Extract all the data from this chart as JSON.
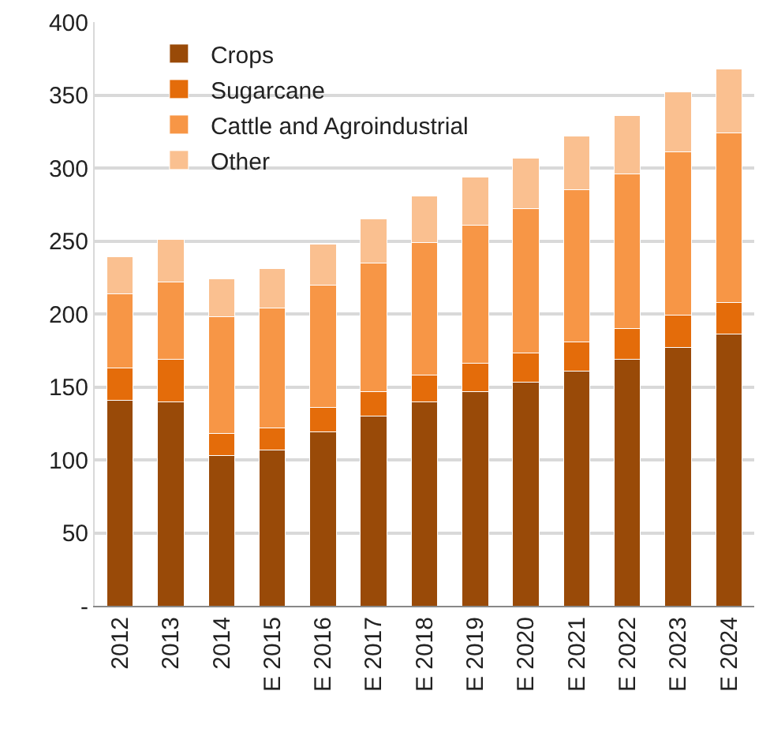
{
  "chart_data": {
    "type": "bar",
    "stacked": true,
    "categories": [
      "2012",
      "2013",
      "2014",
      "E 2015",
      "E 2016",
      "E 2017",
      "E 2018",
      "E 2019",
      "E 2020",
      "E 2021",
      "E 2022",
      "E 2023",
      "E 2024"
    ],
    "series": [
      {
        "name": "Crops",
        "color": "#994a08",
        "values": [
          141,
          140,
          103,
          107,
          119,
          130,
          140,
          147,
          153,
          161,
          169,
          177,
          186
        ]
      },
      {
        "name": "Sugarcane",
        "color": "#e46c0a",
        "values": [
          22,
          29,
          15,
          15,
          17,
          17,
          18,
          19,
          20,
          20,
          21,
          22,
          22
        ]
      },
      {
        "name": "Cattle and Agroindustrial",
        "color": "#f79646",
        "values": [
          51,
          53,
          80,
          82,
          84,
          88,
          91,
          95,
          99,
          104,
          106,
          112,
          116
        ]
      },
      {
        "name": "Other",
        "color": "#fac090",
        "values": [
          25,
          29,
          26,
          27,
          28,
          30,
          32,
          33,
          35,
          37,
          40,
          41,
          44
        ]
      }
    ],
    "ylim": [
      0,
      400
    ],
    "yticks": [
      {
        "value": 0,
        "label": "-"
      },
      50,
      100,
      150,
      200,
      250,
      300,
      350,
      400
    ],
    "grid": "y",
    "legend": "top left"
  }
}
